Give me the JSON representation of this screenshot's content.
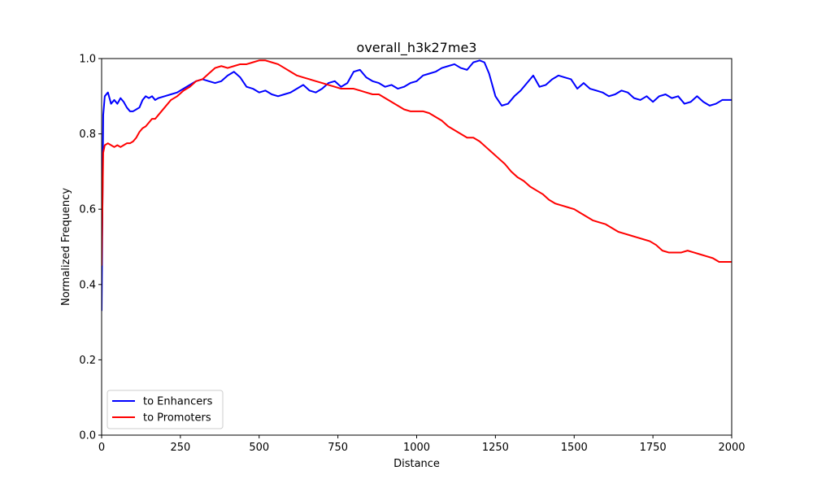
{
  "chart_data": {
    "type": "line",
    "title": "overall_h3k27me3",
    "xlabel": "Distance",
    "ylabel": "Normalized Frequency",
    "xlim": [
      0,
      2000
    ],
    "ylim": [
      0.0,
      1.0
    ],
    "xticks": [
      0,
      250,
      500,
      750,
      1000,
      1250,
      1500,
      1750,
      2000
    ],
    "xtick_labels": [
      "0",
      "250",
      "500",
      "750",
      "1000",
      "1250",
      "1500",
      "1750",
      "2000"
    ],
    "yticks": [
      0.0,
      0.2,
      0.4,
      0.6,
      0.8,
      1.0
    ],
    "ytick_labels": [
      "0.0",
      "0.2",
      "0.4",
      "0.6",
      "0.8",
      "1.0"
    ],
    "grid": false,
    "legend_position": "lower-left",
    "series": [
      {
        "name": "to Enhancers",
        "color": "#0000ff",
        "x": [
          0,
          5,
          10,
          20,
          30,
          40,
          50,
          60,
          70,
          80,
          90,
          100,
          110,
          120,
          130,
          140,
          150,
          160,
          170,
          180,
          200,
          220,
          240,
          260,
          280,
          300,
          320,
          340,
          360,
          380,
          400,
          420,
          440,
          460,
          480,
          500,
          520,
          540,
          560,
          580,
          600,
          620,
          640,
          660,
          680,
          700,
          720,
          740,
          760,
          780,
          800,
          820,
          840,
          860,
          880,
          900,
          920,
          940,
          960,
          980,
          1000,
          1020,
          1040,
          1060,
          1080,
          1100,
          1120,
          1140,
          1160,
          1180,
          1200,
          1215,
          1230,
          1250,
          1270,
          1290,
          1310,
          1330,
          1350,
          1370,
          1390,
          1410,
          1430,
          1450,
          1470,
          1490,
          1510,
          1530,
          1550,
          1570,
          1590,
          1610,
          1630,
          1650,
          1670,
          1690,
          1710,
          1730,
          1750,
          1770,
          1790,
          1810,
          1830,
          1850,
          1870,
          1890,
          1910,
          1930,
          1950,
          1970,
          1990,
          2000
        ],
        "y": [
          0.33,
          0.85,
          0.9,
          0.91,
          0.88,
          0.89,
          0.88,
          0.895,
          0.885,
          0.87,
          0.86,
          0.86,
          0.865,
          0.87,
          0.89,
          0.9,
          0.895,
          0.9,
          0.89,
          0.895,
          0.9,
          0.905,
          0.91,
          0.92,
          0.93,
          0.94,
          0.945,
          0.94,
          0.935,
          0.94,
          0.955,
          0.965,
          0.95,
          0.925,
          0.92,
          0.91,
          0.915,
          0.905,
          0.9,
          0.905,
          0.91,
          0.92,
          0.93,
          0.915,
          0.91,
          0.92,
          0.935,
          0.94,
          0.925,
          0.935,
          0.965,
          0.97,
          0.95,
          0.94,
          0.935,
          0.925,
          0.93,
          0.92,
          0.925,
          0.935,
          0.94,
          0.955,
          0.96,
          0.965,
          0.975,
          0.98,
          0.985,
          0.975,
          0.97,
          0.99,
          0.995,
          0.99,
          0.96,
          0.9,
          0.875,
          0.88,
          0.9,
          0.915,
          0.935,
          0.955,
          0.925,
          0.93,
          0.945,
          0.955,
          0.95,
          0.945,
          0.92,
          0.935,
          0.92,
          0.915,
          0.91,
          0.9,
          0.905,
          0.915,
          0.91,
          0.895,
          0.89,
          0.9,
          0.885,
          0.9,
          0.905,
          0.895,
          0.9,
          0.88,
          0.885,
          0.9,
          0.885,
          0.875,
          0.88,
          0.89,
          0.89,
          0.89
        ]
      },
      {
        "name": "to Promoters",
        "color": "#ff0000",
        "x": [
          0,
          5,
          10,
          20,
          30,
          40,
          50,
          60,
          70,
          80,
          90,
          100,
          110,
          120,
          130,
          140,
          150,
          160,
          170,
          180,
          200,
          220,
          240,
          260,
          280,
          300,
          320,
          340,
          360,
          380,
          400,
          420,
          440,
          460,
          480,
          500,
          520,
          540,
          560,
          580,
          600,
          620,
          640,
          660,
          680,
          700,
          720,
          740,
          760,
          780,
          800,
          820,
          840,
          860,
          880,
          900,
          920,
          940,
          960,
          980,
          1000,
          1020,
          1040,
          1060,
          1080,
          1100,
          1120,
          1140,
          1160,
          1180,
          1200,
          1220,
          1240,
          1260,
          1280,
          1300,
          1320,
          1340,
          1360,
          1380,
          1400,
          1420,
          1440,
          1460,
          1480,
          1500,
          1520,
          1540,
          1560,
          1580,
          1600,
          1620,
          1640,
          1660,
          1680,
          1700,
          1720,
          1740,
          1760,
          1780,
          1800,
          1820,
          1840,
          1860,
          1880,
          1900,
          1920,
          1940,
          1960,
          1980,
          2000
        ],
        "y": [
          0.45,
          0.75,
          0.77,
          0.775,
          0.77,
          0.765,
          0.77,
          0.765,
          0.77,
          0.775,
          0.775,
          0.78,
          0.79,
          0.805,
          0.815,
          0.82,
          0.83,
          0.84,
          0.84,
          0.85,
          0.87,
          0.89,
          0.9,
          0.915,
          0.925,
          0.94,
          0.945,
          0.96,
          0.975,
          0.98,
          0.975,
          0.98,
          0.985,
          0.985,
          0.99,
          0.995,
          0.995,
          0.99,
          0.985,
          0.975,
          0.965,
          0.955,
          0.95,
          0.945,
          0.94,
          0.935,
          0.93,
          0.925,
          0.92,
          0.92,
          0.92,
          0.915,
          0.91,
          0.905,
          0.905,
          0.895,
          0.885,
          0.875,
          0.865,
          0.86,
          0.86,
          0.86,
          0.855,
          0.845,
          0.835,
          0.82,
          0.81,
          0.8,
          0.79,
          0.79,
          0.78,
          0.765,
          0.75,
          0.735,
          0.72,
          0.7,
          0.685,
          0.675,
          0.66,
          0.65,
          0.64,
          0.625,
          0.615,
          0.61,
          0.605,
          0.6,
          0.59,
          0.58,
          0.57,
          0.565,
          0.56,
          0.55,
          0.54,
          0.535,
          0.53,
          0.525,
          0.52,
          0.515,
          0.505,
          0.49,
          0.485,
          0.485,
          0.485,
          0.49,
          0.485,
          0.48,
          0.475,
          0.47,
          0.46,
          0.46,
          0.46
        ]
      }
    ]
  }
}
